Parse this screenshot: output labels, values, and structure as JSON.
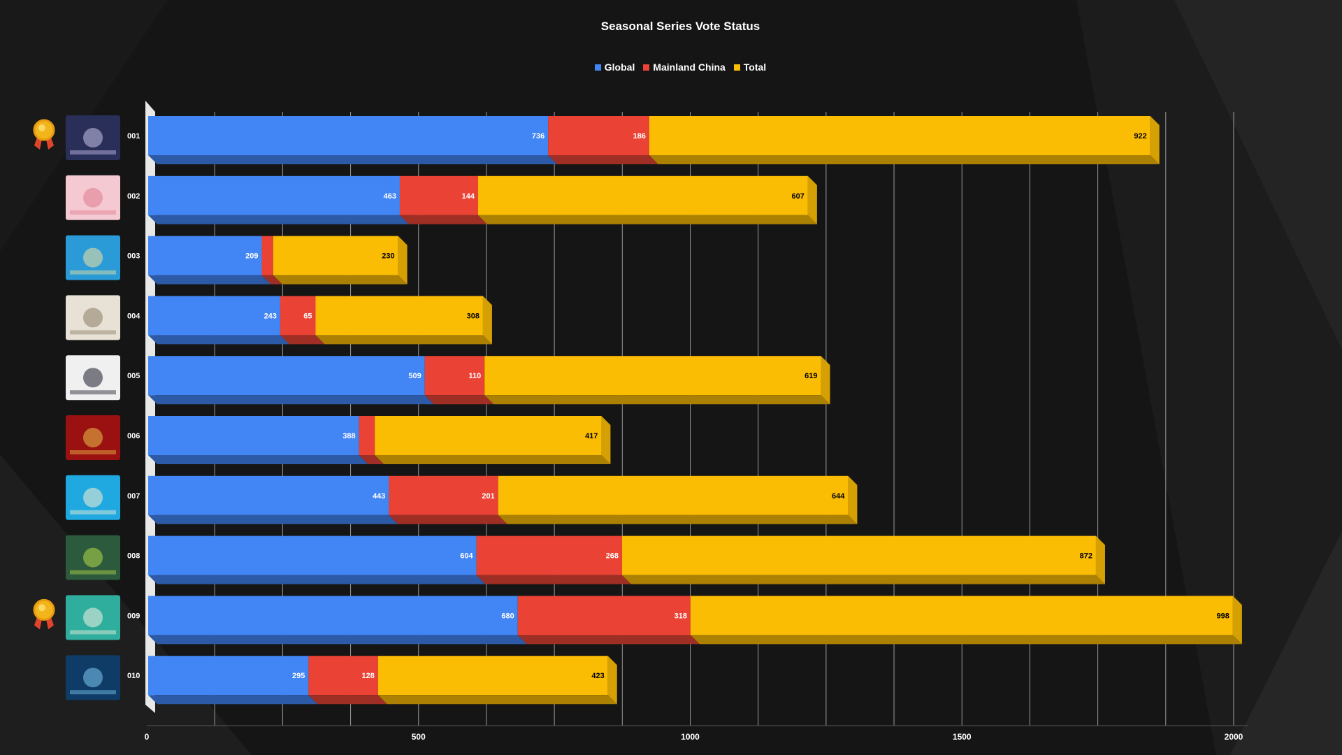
{
  "chart_data": {
    "type": "bar",
    "orientation": "horizontal",
    "stacked": true,
    "title": "Seasonal Series Vote Status",
    "categories": [
      "001",
      "002",
      "003",
      "004",
      "005",
      "006",
      "007",
      "008",
      "009",
      "010"
    ],
    "series": [
      {
        "name": "Global",
        "color": "#4285F4",
        "values": [
          736,
          463,
          209,
          243,
          509,
          388,
          443,
          604,
          680,
          295
        ]
      },
      {
        "name": "Mainland China",
        "color": "#EA4335",
        "values": [
          186,
          144,
          21,
          65,
          110,
          29,
          201,
          268,
          318,
          128
        ]
      },
      {
        "name": "Total",
        "color": "#FBBC04",
        "values": [
          922,
          607,
          230,
          308,
          619,
          417,
          644,
          872,
          998,
          423
        ]
      }
    ],
    "xlim": [
      0,
      2000
    ],
    "x_ticks": [
      0,
      500,
      1000,
      1500,
      2000
    ],
    "grid": true,
    "legend_position": "top",
    "medal_categories": [
      "001",
      "009"
    ],
    "thumbnail_icons": [
      "lavender-night-card-icon",
      "pink-sakura-card-icon",
      "beach-ocean-card-icon",
      "scattered-items-card-icon",
      "zebra-stripe-card-icon",
      "red-dragon-card-icon",
      "cyan-cats-card-icon",
      "green-forest-card-icon",
      "lily-pad-card-icon",
      "blue-orb-card-icon"
    ],
    "colors": {
      "background": "#161616",
      "grid": "#c8c8c8",
      "text": "#ffffff",
      "label_dark": "#000000"
    }
  }
}
